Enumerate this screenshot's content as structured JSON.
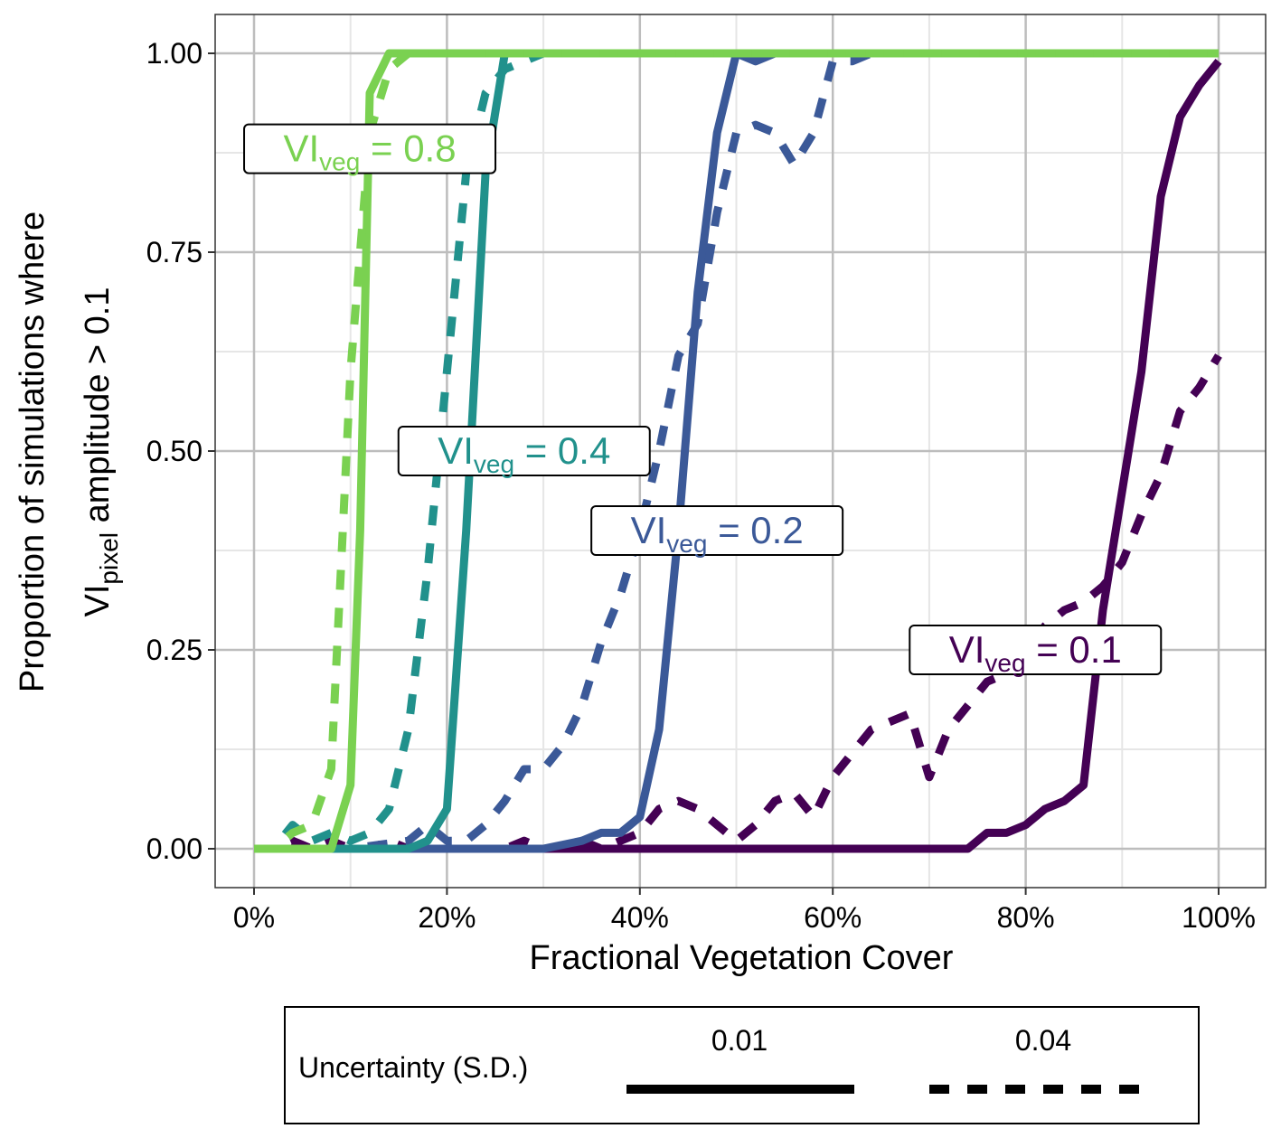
{
  "chart_data": {
    "type": "line",
    "xlabel": "Fractional Vegetation Cover",
    "ylabel_line1": "Proportion of simulations where",
    "ylabel_line2": {
      "prefix": "VI",
      "sub": "pixel",
      "suffix": " amplitude > 0.1"
    },
    "xlim": [
      -0.04,
      1.05
    ],
    "ylim": [
      -0.05,
      1.05
    ],
    "x_ticks": [
      0,
      0.2,
      0.4,
      0.6,
      0.8,
      1.0
    ],
    "x_tick_labels": [
      "0%",
      "20%",
      "40%",
      "60%",
      "80%",
      "100%"
    ],
    "y_ticks": [
      0,
      0.25,
      0.5,
      0.75,
      1.0
    ],
    "y_tick_labels": [
      "0.00",
      "0.25",
      "0.50",
      "0.75",
      "1.00"
    ],
    "x_minor_ticks": [
      0.1,
      0.3,
      0.5,
      0.7,
      0.9
    ],
    "y_minor_ticks": [
      0.125,
      0.375,
      0.625,
      0.875
    ],
    "grid": true,
    "series": [
      {
        "vi": "0.1",
        "uncertainty": "0.01",
        "color": "#440154",
        "points": [
          [
            0,
            0
          ],
          [
            0.2,
            0
          ],
          [
            0.4,
            0
          ],
          [
            0.6,
            0
          ],
          [
            0.74,
            0
          ],
          [
            0.76,
            0.02
          ],
          [
            0.78,
            0.02
          ],
          [
            0.8,
            0.03
          ],
          [
            0.82,
            0.05
          ],
          [
            0.84,
            0.06
          ],
          [
            0.86,
            0.08
          ],
          [
            0.88,
            0.3
          ],
          [
            0.9,
            0.45
          ],
          [
            0.92,
            0.6
          ],
          [
            0.94,
            0.82
          ],
          [
            0.96,
            0.92
          ],
          [
            0.98,
            0.96
          ],
          [
            1.0,
            0.99
          ]
        ]
      },
      {
        "vi": "0.1",
        "uncertainty": "0.04",
        "color": "#440154",
        "points": [
          [
            0,
            0
          ],
          [
            0.02,
            0
          ],
          [
            0.04,
            0.01
          ],
          [
            0.06,
            0
          ],
          [
            0.08,
            0.01
          ],
          [
            0.1,
            0
          ],
          [
            0.12,
            0
          ],
          [
            0.14,
            0.01
          ],
          [
            0.16,
            0
          ],
          [
            0.18,
            0
          ],
          [
            0.2,
            0
          ],
          [
            0.22,
            0
          ],
          [
            0.24,
            0
          ],
          [
            0.26,
            0
          ],
          [
            0.28,
            0.01
          ],
          [
            0.3,
            0
          ],
          [
            0.32,
            0
          ],
          [
            0.34,
            0.01
          ],
          [
            0.36,
            0
          ],
          [
            0.38,
            0.01
          ],
          [
            0.4,
            0.02
          ],
          [
            0.42,
            0.05
          ],
          [
            0.44,
            0.06
          ],
          [
            0.46,
            0.05
          ],
          [
            0.48,
            0.03
          ],
          [
            0.5,
            0.01
          ],
          [
            0.52,
            0.03
          ],
          [
            0.54,
            0.06
          ],
          [
            0.56,
            0.07
          ],
          [
            0.58,
            0.04
          ],
          [
            0.6,
            0.09
          ],
          [
            0.62,
            0.12
          ],
          [
            0.64,
            0.15
          ],
          [
            0.66,
            0.16
          ],
          [
            0.68,
            0.17
          ],
          [
            0.7,
            0.09
          ],
          [
            0.72,
            0.15
          ],
          [
            0.74,
            0.18
          ],
          [
            0.76,
            0.21
          ],
          [
            0.78,
            0.22
          ],
          [
            0.8,
            0.24
          ],
          [
            0.82,
            0.28
          ],
          [
            0.84,
            0.3
          ],
          [
            0.86,
            0.31
          ],
          [
            0.88,
            0.33
          ],
          [
            0.9,
            0.36
          ],
          [
            0.92,
            0.42
          ],
          [
            0.94,
            0.47
          ],
          [
            0.96,
            0.55
          ],
          [
            0.98,
            0.58
          ],
          [
            1.0,
            0.62
          ]
        ]
      },
      {
        "vi": "0.2",
        "uncertainty": "0.01",
        "color": "#3b5998",
        "points": [
          [
            0,
            0
          ],
          [
            0.3,
            0
          ],
          [
            0.34,
            0.01
          ],
          [
            0.36,
            0.02
          ],
          [
            0.38,
            0.02
          ],
          [
            0.4,
            0.04
          ],
          [
            0.42,
            0.15
          ],
          [
            0.44,
            0.4
          ],
          [
            0.46,
            0.7
          ],
          [
            0.48,
            0.9
          ],
          [
            0.5,
            1.0
          ],
          [
            0.52,
            0.99
          ],
          [
            0.54,
            1.0
          ],
          [
            1.0,
            1.0
          ]
        ]
      },
      {
        "vi": "0.2",
        "uncertainty": "0.04",
        "color": "#3b5998",
        "points": [
          [
            0,
            0
          ],
          [
            0.1,
            0
          ],
          [
            0.16,
            0.01
          ],
          [
            0.18,
            0.03
          ],
          [
            0.2,
            0.01
          ],
          [
            0.22,
            0.01
          ],
          [
            0.24,
            0.03
          ],
          [
            0.26,
            0.06
          ],
          [
            0.28,
            0.1
          ],
          [
            0.3,
            0.1
          ],
          [
            0.32,
            0.13
          ],
          [
            0.34,
            0.18
          ],
          [
            0.36,
            0.26
          ],
          [
            0.38,
            0.32
          ],
          [
            0.4,
            0.4
          ],
          [
            0.42,
            0.5
          ],
          [
            0.44,
            0.62
          ],
          [
            0.46,
            0.66
          ],
          [
            0.48,
            0.8
          ],
          [
            0.5,
            0.9
          ],
          [
            0.52,
            0.91
          ],
          [
            0.54,
            0.9
          ],
          [
            0.56,
            0.86
          ],
          [
            0.58,
            0.9
          ],
          [
            0.6,
            0.99
          ],
          [
            0.62,
            0.99
          ],
          [
            0.64,
            1.0
          ],
          [
            1.0,
            1.0
          ]
        ]
      },
      {
        "vi": "0.4",
        "uncertainty": "0.01",
        "color": "#21918c",
        "points": [
          [
            0,
            0
          ],
          [
            0.16,
            0
          ],
          [
            0.18,
            0.01
          ],
          [
            0.2,
            0.05
          ],
          [
            0.22,
            0.4
          ],
          [
            0.24,
            0.85
          ],
          [
            0.26,
            1.0
          ],
          [
            1.0,
            1.0
          ]
        ]
      },
      {
        "vi": "0.4",
        "uncertainty": "0.04",
        "color": "#21918c",
        "points": [
          [
            0,
            0
          ],
          [
            0.02,
            0
          ],
          [
            0.04,
            0.03
          ],
          [
            0.06,
            0.01
          ],
          [
            0.08,
            0.02
          ],
          [
            0.1,
            0.01
          ],
          [
            0.12,
            0.02
          ],
          [
            0.14,
            0.05
          ],
          [
            0.16,
            0.15
          ],
          [
            0.18,
            0.35
          ],
          [
            0.2,
            0.6
          ],
          [
            0.22,
            0.85
          ],
          [
            0.24,
            0.95
          ],
          [
            0.26,
            0.98
          ],
          [
            0.28,
            0.99
          ],
          [
            0.3,
            1.0
          ],
          [
            1.0,
            1.0
          ]
        ]
      },
      {
        "vi": "0.8",
        "uncertainty": "0.01",
        "color": "#7ad151",
        "points": [
          [
            0,
            0
          ],
          [
            0.08,
            0
          ],
          [
            0.1,
            0.08
          ],
          [
            0.11,
            0.4
          ],
          [
            0.12,
            0.95
          ],
          [
            0.14,
            1.0
          ],
          [
            1.0,
            1.0
          ]
        ]
      },
      {
        "vi": "0.8",
        "uncertainty": "0.04",
        "color": "#7ad151",
        "points": [
          [
            0,
            0
          ],
          [
            0.02,
            0
          ],
          [
            0.04,
            0.02
          ],
          [
            0.06,
            0.03
          ],
          [
            0.08,
            0.1
          ],
          [
            0.1,
            0.6
          ],
          [
            0.12,
            0.9
          ],
          [
            0.14,
            0.98
          ],
          [
            0.16,
            1.0
          ],
          [
            1.0,
            1.0
          ]
        ]
      }
    ],
    "annotations": [
      {
        "prefix": "VI",
        "sub": "veg",
        "suffix": " = 0.8",
        "x": 0.12,
        "y": 0.88,
        "color": "#7ad151"
      },
      {
        "prefix": "VI",
        "sub": "veg",
        "suffix": " = 0.4",
        "x": 0.28,
        "y": 0.5,
        "color": "#21918c"
      },
      {
        "prefix": "VI",
        "sub": "veg",
        "suffix": " = 0.2",
        "x": 0.48,
        "y": 0.4,
        "color": "#3b5998"
      },
      {
        "prefix": "VI",
        "sub": "veg",
        "suffix": " = 0.1",
        "x": 0.81,
        "y": 0.25,
        "color": "#440154"
      }
    ],
    "legend": {
      "title": "Uncertainty (S.D.)",
      "placement": "bottom",
      "items": [
        {
          "label": "0.01",
          "style": "solid"
        },
        {
          "label": "0.04",
          "style": "dashed"
        }
      ]
    }
  }
}
